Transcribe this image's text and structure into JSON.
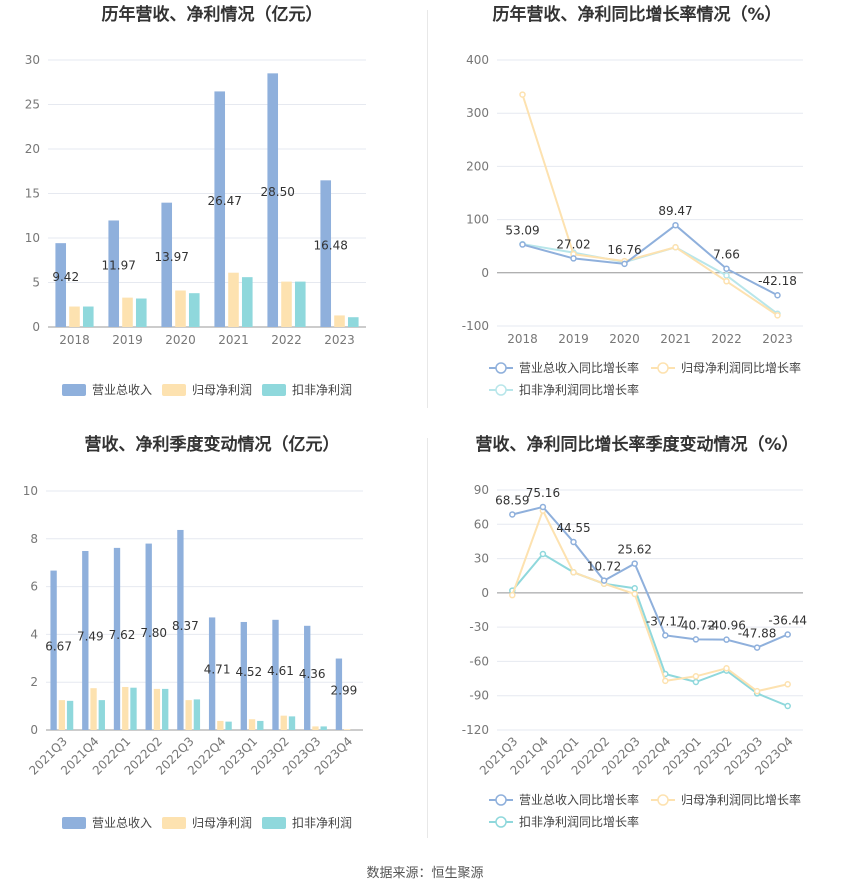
{
  "source_text": "数据来源：恒生聚源",
  "colors": {
    "blue": "#8fb0dc",
    "yellow": "#fde2b0",
    "teal": "#8fd8dc"
  },
  "chart_data": [
    {
      "type": "bar",
      "title": "历年营收、净利情况（亿元）",
      "categories": [
        "2018",
        "2019",
        "2020",
        "2021",
        "2022",
        "2023"
      ],
      "ylim": [
        0,
        30
      ],
      "yticks": [
        0,
        5,
        10,
        15,
        20,
        25,
        30
      ],
      "series": [
        {
          "name": "营业总收入",
          "color": "#8fb0dc",
          "values": [
            9.42,
            11.97,
            13.97,
            26.47,
            28.5,
            16.48
          ],
          "labels": [
            "9.42",
            "11.97",
            "13.97",
            "26.47",
            "28.50",
            "16.48"
          ]
        },
        {
          "name": "归母净利润",
          "color": "#fde2b0",
          "values": [
            2.3,
            3.3,
            4.1,
            6.1,
            5.1,
            1.3
          ]
        },
        {
          "name": "扣非净利润",
          "color": "#8fd8dc",
          "values": [
            2.3,
            3.2,
            3.8,
            5.6,
            5.1,
            1.1
          ]
        }
      ],
      "legend_position": "bottom"
    },
    {
      "type": "line",
      "title": "历年营收、净利同比增长率情况（%）",
      "categories": [
        "2018",
        "2019",
        "2020",
        "2021",
        "2022",
        "2023"
      ],
      "ylim": [
        -100,
        400
      ],
      "yticks": [
        -100,
        0,
        100,
        200,
        300,
        400
      ],
      "series": [
        {
          "name": "营业总收入同比增长率",
          "color": "#8fb0dc",
          "values": [
            53.09,
            27.02,
            16.76,
            89.47,
            7.66,
            -42.18
          ],
          "labels": [
            "53.09",
            "27.02",
            "16.76",
            "89.47",
            "7.66",
            "-42.18"
          ]
        },
        {
          "name": "归母净利润同比增长率",
          "color": "#fde2b0",
          "values": [
            335,
            35,
            22,
            48,
            -16,
            -80
          ]
        },
        {
          "name": "扣非净利润同比增长率",
          "color": "#b8e6ea",
          "values": [
            54,
            38,
            20,
            48,
            -5,
            -77
          ]
        }
      ],
      "legend_position": "bottom"
    },
    {
      "type": "bar",
      "title": "营收、净利季度变动情况（亿元）",
      "categories": [
        "2021Q3",
        "2021Q4",
        "2022Q1",
        "2022Q2",
        "2022Q3",
        "2022Q4",
        "2023Q1",
        "2023Q2",
        "2023Q3",
        "2023Q4"
      ],
      "ylim": [
        0,
        10
      ],
      "yticks": [
        0,
        2,
        4,
        6,
        8,
        10
      ],
      "series": [
        {
          "name": "营业总收入",
          "color": "#8fb0dc",
          "values": [
            6.67,
            7.49,
            7.62,
            7.8,
            8.37,
            4.71,
            4.52,
            4.61,
            4.36,
            2.99
          ],
          "labels": [
            "6.67",
            "7.49",
            "7.62",
            "7.80",
            "8.37",
            "4.71",
            "4.52",
            "4.61",
            "4.36",
            "2.99"
          ]
        },
        {
          "name": "归母净利润",
          "color": "#fde2b0",
          "values": [
            1.25,
            1.75,
            1.8,
            1.72,
            1.25,
            0.38,
            0.45,
            0.6,
            0.15,
            0.03
          ]
        },
        {
          "name": "扣非净利润",
          "color": "#8fd8dc",
          "values": [
            1.22,
            1.25,
            1.77,
            1.72,
            1.28,
            0.35,
            0.38,
            0.57,
            0.15,
            0.0
          ]
        }
      ],
      "legend_position": "bottom"
    },
    {
      "type": "line",
      "title": "营收、净利同比增长率季度变动情况（%）",
      "categories": [
        "2021Q3",
        "2021Q4",
        "2022Q1",
        "2022Q2",
        "2022Q3",
        "2022Q4",
        "2023Q1",
        "2023Q2",
        "2023Q3",
        "2023Q4"
      ],
      "ylim": [
        -120,
        90
      ],
      "yticks": [
        -120,
        -90,
        -60,
        -30,
        0,
        30,
        60,
        90
      ],
      "series": [
        {
          "name": "营业总收入同比增长率",
          "color": "#8fb0dc",
          "values": [
            68.59,
            75.16,
            44.55,
            10.72,
            25.62,
            -37.17,
            -40.72,
            -40.96,
            -47.88,
            -36.44
          ],
          "labels": [
            "68.59",
            "75.16",
            "44.55",
            "10.72",
            "25.62",
            "-37.17",
            "-40.72",
            "-40.96",
            "-47.88",
            "-36.44"
          ]
        },
        {
          "name": "归母净利润同比增长率",
          "color": "#fde2b0",
          "values": [
            -2,
            72,
            18,
            8,
            -1,
            -77,
            -73,
            -66,
            -86,
            -80
          ]
        },
        {
          "name": "扣非净利润同比增长率",
          "color": "#8fd8dc",
          "values": [
            2,
            34,
            18,
            8,
            4,
            -71,
            -78,
            -68,
            -88,
            -99
          ]
        }
      ],
      "legend_position": "bottom"
    }
  ]
}
